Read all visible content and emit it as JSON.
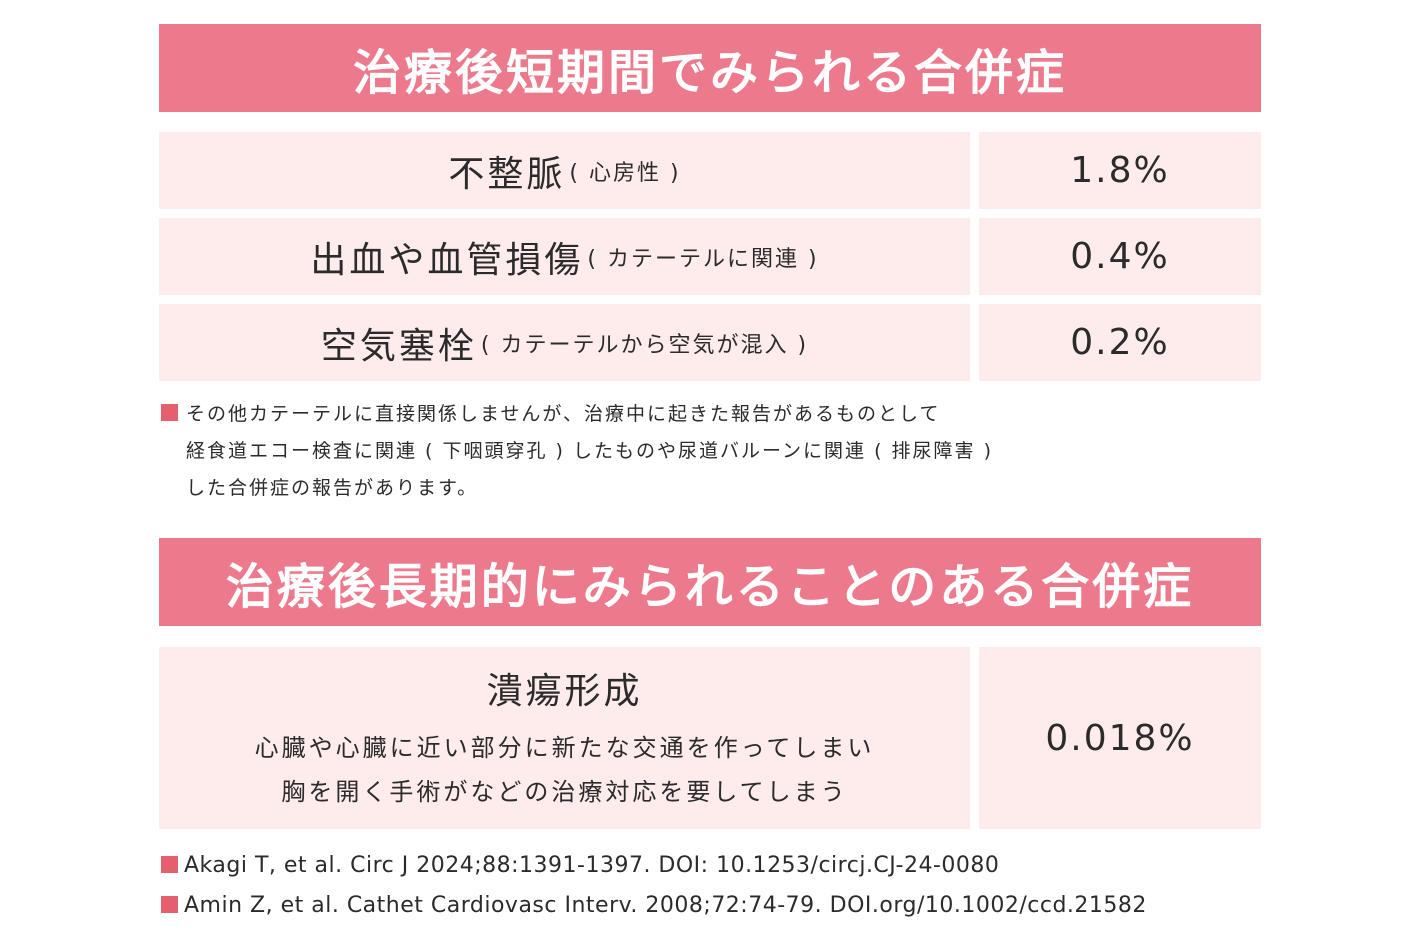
{
  "short_term": {
    "title": "治療後短期間でみられる合併症",
    "rows": [
      {
        "name": "不整脈",
        "detail": "( 心房性 )",
        "rate": "1.8%"
      },
      {
        "name": "出血や血管損傷",
        "detail": "( カテーテルに関連 )",
        "rate": "0.4%"
      },
      {
        "name": "空気塞栓",
        "detail": "( カテーテルから空気が混入 )",
        "rate": "0.2%"
      }
    ],
    "note_lines": [
      "その他カテーテルに直接関係しませんが、治療中に起きた報告があるものとして",
      "経食道エコー検査に関連 ( 下咽頭穿孔 ) したものや尿道バルーンに関連 ( 排尿障害 )",
      "した合併症の報告があります。"
    ]
  },
  "long_term": {
    "title": "治療後長期的にみられることのある合併症",
    "row": {
      "name": "潰瘍形成",
      "description_lines": [
        "心臓や心臓に近い部分に新たな交通を作ってしまい",
        "胸を開く手術がなどの治療対応を要してしまう"
      ],
      "rate": "0.018%"
    }
  },
  "references": [
    "Akagi T, et al. Circ J 2024;88:1391-1397. DOI: 10.1253/circj.CJ-24-0080",
    "Amin Z, et al. Cathet Cardiovasc Interv. 2008;72:74-79. DOI.org/10.1002/ccd.21582"
  ],
  "colors": {
    "banner": "#ec7a8c",
    "cell": "#fdeceb",
    "bullet": "#e4606f"
  }
}
